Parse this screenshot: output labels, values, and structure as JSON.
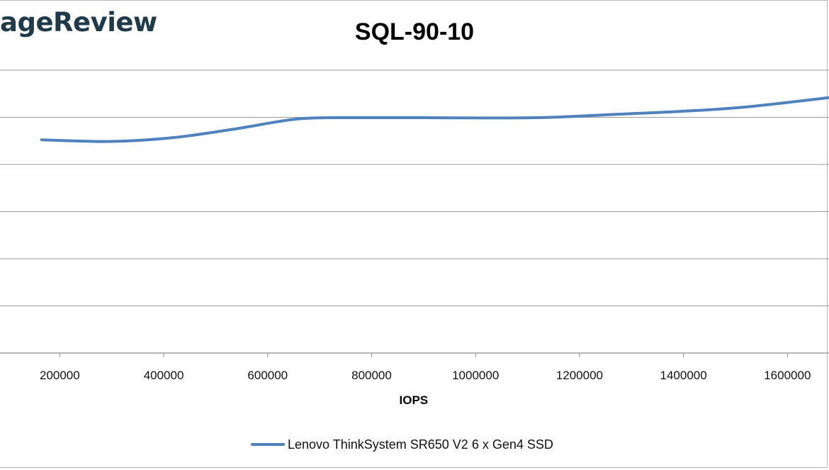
{
  "logo": {
    "text": "ageReview"
  },
  "chart_data": {
    "type": "line",
    "title": "SQL-90-10",
    "xlabel": "IOPS",
    "ylabel": "",
    "xlim": [
      85000,
      1680000
    ],
    "ylim": [
      0,
      1
    ],
    "x_ticks": [
      200000,
      400000,
      600000,
      800000,
      1000000,
      1200000,
      1400000,
      1600000
    ],
    "y_gridlines": 6,
    "grid": true,
    "legend_position": "bottom",
    "series": [
      {
        "name": "Lenovo ThinkSystem SR650 V2 6 x Gen4 SSD",
        "color": "#4f81bd",
        "x": [
          165000,
          300000,
          420000,
          540000,
          660000,
          780000,
          900000,
          1020000,
          1140000,
          1260000,
          1400000,
          1520000,
          1680000
        ],
        "y": [
          0.754,
          0.748,
          0.762,
          0.793,
          0.828,
          0.832,
          0.832,
          0.831,
          0.833,
          0.843,
          0.855,
          0.87,
          0.903
        ]
      }
    ]
  }
}
